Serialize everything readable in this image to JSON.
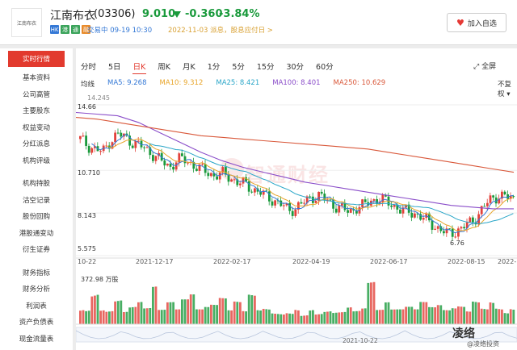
{
  "header": {
    "logo_text": "江南布衣",
    "name": "江南布衣",
    "code": "(03306)",
    "price": "9.010",
    "change": "-0.360",
    "change_pct": "-3.84%",
    "tags": [
      {
        "label": "HK",
        "color": "#3579d6"
      },
      {
        "label": "港",
        "color": "#3aa35a"
      },
      {
        "label": "通",
        "color": "#3aa35a"
      },
      {
        "label": "融",
        "color": "#e88a2a"
      }
    ],
    "status": "交易中 09-19 10:30",
    "notice": "2022-11-03 派息，股息应付日 >",
    "favorite_label": "加入自选"
  },
  "sidebar": {
    "items": [
      "实时行情",
      "基本资料",
      "公司高管",
      "主要股东",
      "权益变动",
      "分红派息",
      "机构评级",
      "机构持股",
      "沽空记录",
      "股份回购",
      "港股通变动",
      "衍生证券",
      "财务指标",
      "财务分析",
      "利润表",
      "资产负债表",
      "现金流量表"
    ]
  },
  "periods": [
    "分时",
    "5日",
    "日K",
    "周K",
    "月K",
    "1分",
    "5分",
    "15分",
    "30分",
    "60分"
  ],
  "active_period": "日K",
  "fullscreen_label": "全屏",
  "adjust_label": "不复权",
  "ma_title": "均线",
  "ma": [
    {
      "label": "MA5: 9.268",
      "color": "#3579d6"
    },
    {
      "label": "MA10: 9.312",
      "color": "#e8a52a"
    },
    {
      "label": "MA25: 8.421",
      "color": "#2aa6c8"
    },
    {
      "label": "MA100: 8.401",
      "color": "#8a4dc9"
    },
    {
      "label": "MA250: 10.629",
      "color": "#d9583a"
    }
  ],
  "chart_data": {
    "type": "candlestick",
    "y_ticks": [
      "14.66",
      "10.710",
      "8.143",
      "5.575"
    ],
    "x_ticks": [
      "10-22",
      "2021-12-17",
      "2022-02-17",
      "2022-04-19",
      "2022-06-17",
      "2022-08-15",
      "2022-"
    ],
    "annotations": [
      "14.245",
      "6.76"
    ],
    "close_path": [
      12.6,
      12.2,
      12.0,
      11.8,
      12.5,
      12.9,
      12.7,
      12.4,
      12.2,
      11.9,
      11.6,
      11.2,
      10.9,
      11.4,
      11.3,
      11.1,
      10.8,
      10.6,
      10.4,
      10.5,
      10.3,
      10.0,
      9.9,
      9.6,
      9.4,
      9.1,
      8.9,
      8.6,
      8.3,
      8.5,
      8.8,
      9.1,
      9.2,
      8.9,
      8.6,
      8.4,
      8.2,
      8.5,
      8.6,
      8.9,
      9.0,
      8.8,
      8.6,
      8.3,
      8.2,
      8.1,
      7.8,
      7.5,
      7.2,
      6.9,
      7.0,
      7.2,
      7.5,
      7.9,
      8.5,
      9.0,
      9.2,
      9.1,
      9.0
    ],
    "ma250_path": [
      13.9,
      13.8,
      13.6,
      13.4,
      13.2,
      13.0,
      12.8,
      12.7,
      12.6,
      12.5,
      12.4,
      12.3,
      12.2,
      12.1,
      12.0,
      11.8,
      11.6,
      11.4,
      11.2,
      11.0,
      10.8,
      10.6
    ],
    "ma100_path": [
      14.2,
      14.1,
      14.0,
      13.6,
      13.0,
      12.4,
      11.8,
      11.3,
      10.9,
      10.6,
      10.3,
      10.0,
      9.8,
      9.6,
      9.4,
      9.2,
      9.0,
      8.8,
      8.6,
      8.5,
      8.4,
      8.4
    ],
    "volume_unit": "372.98 万股",
    "volumes": [
      0.5,
      0.45,
      0.9,
      0.4,
      0.35,
      0.6,
      0.3,
      0.4,
      0.5,
      0.35,
      0.8,
      0.3,
      0.45,
      0.3,
      0.5,
      0.6,
      0.3,
      0.35,
      0.4,
      0.55,
      0.3,
      0.5,
      0.3,
      0.7,
      0.35,
      0.4,
      0.3,
      0.3,
      0.35,
      0.5,
      0.3,
      0.45,
      0.3,
      0.35,
      0.3,
      0.3,
      0.4,
      0.3,
      0.35,
      0.9,
      0.3,
      0.45,
      0.3,
      0.3,
      0.35,
      0.3,
      0.45,
      0.35,
      0.4,
      0.3,
      0.35,
      0.4,
      0.3,
      0.55,
      0.4,
      0.6,
      0.45,
      0.35,
      0.5
    ]
  },
  "navigator_date": "2021-10-22",
  "watermark": "智通财经",
  "stamp": "凌络",
  "stamp_sub": "@凌络投资"
}
